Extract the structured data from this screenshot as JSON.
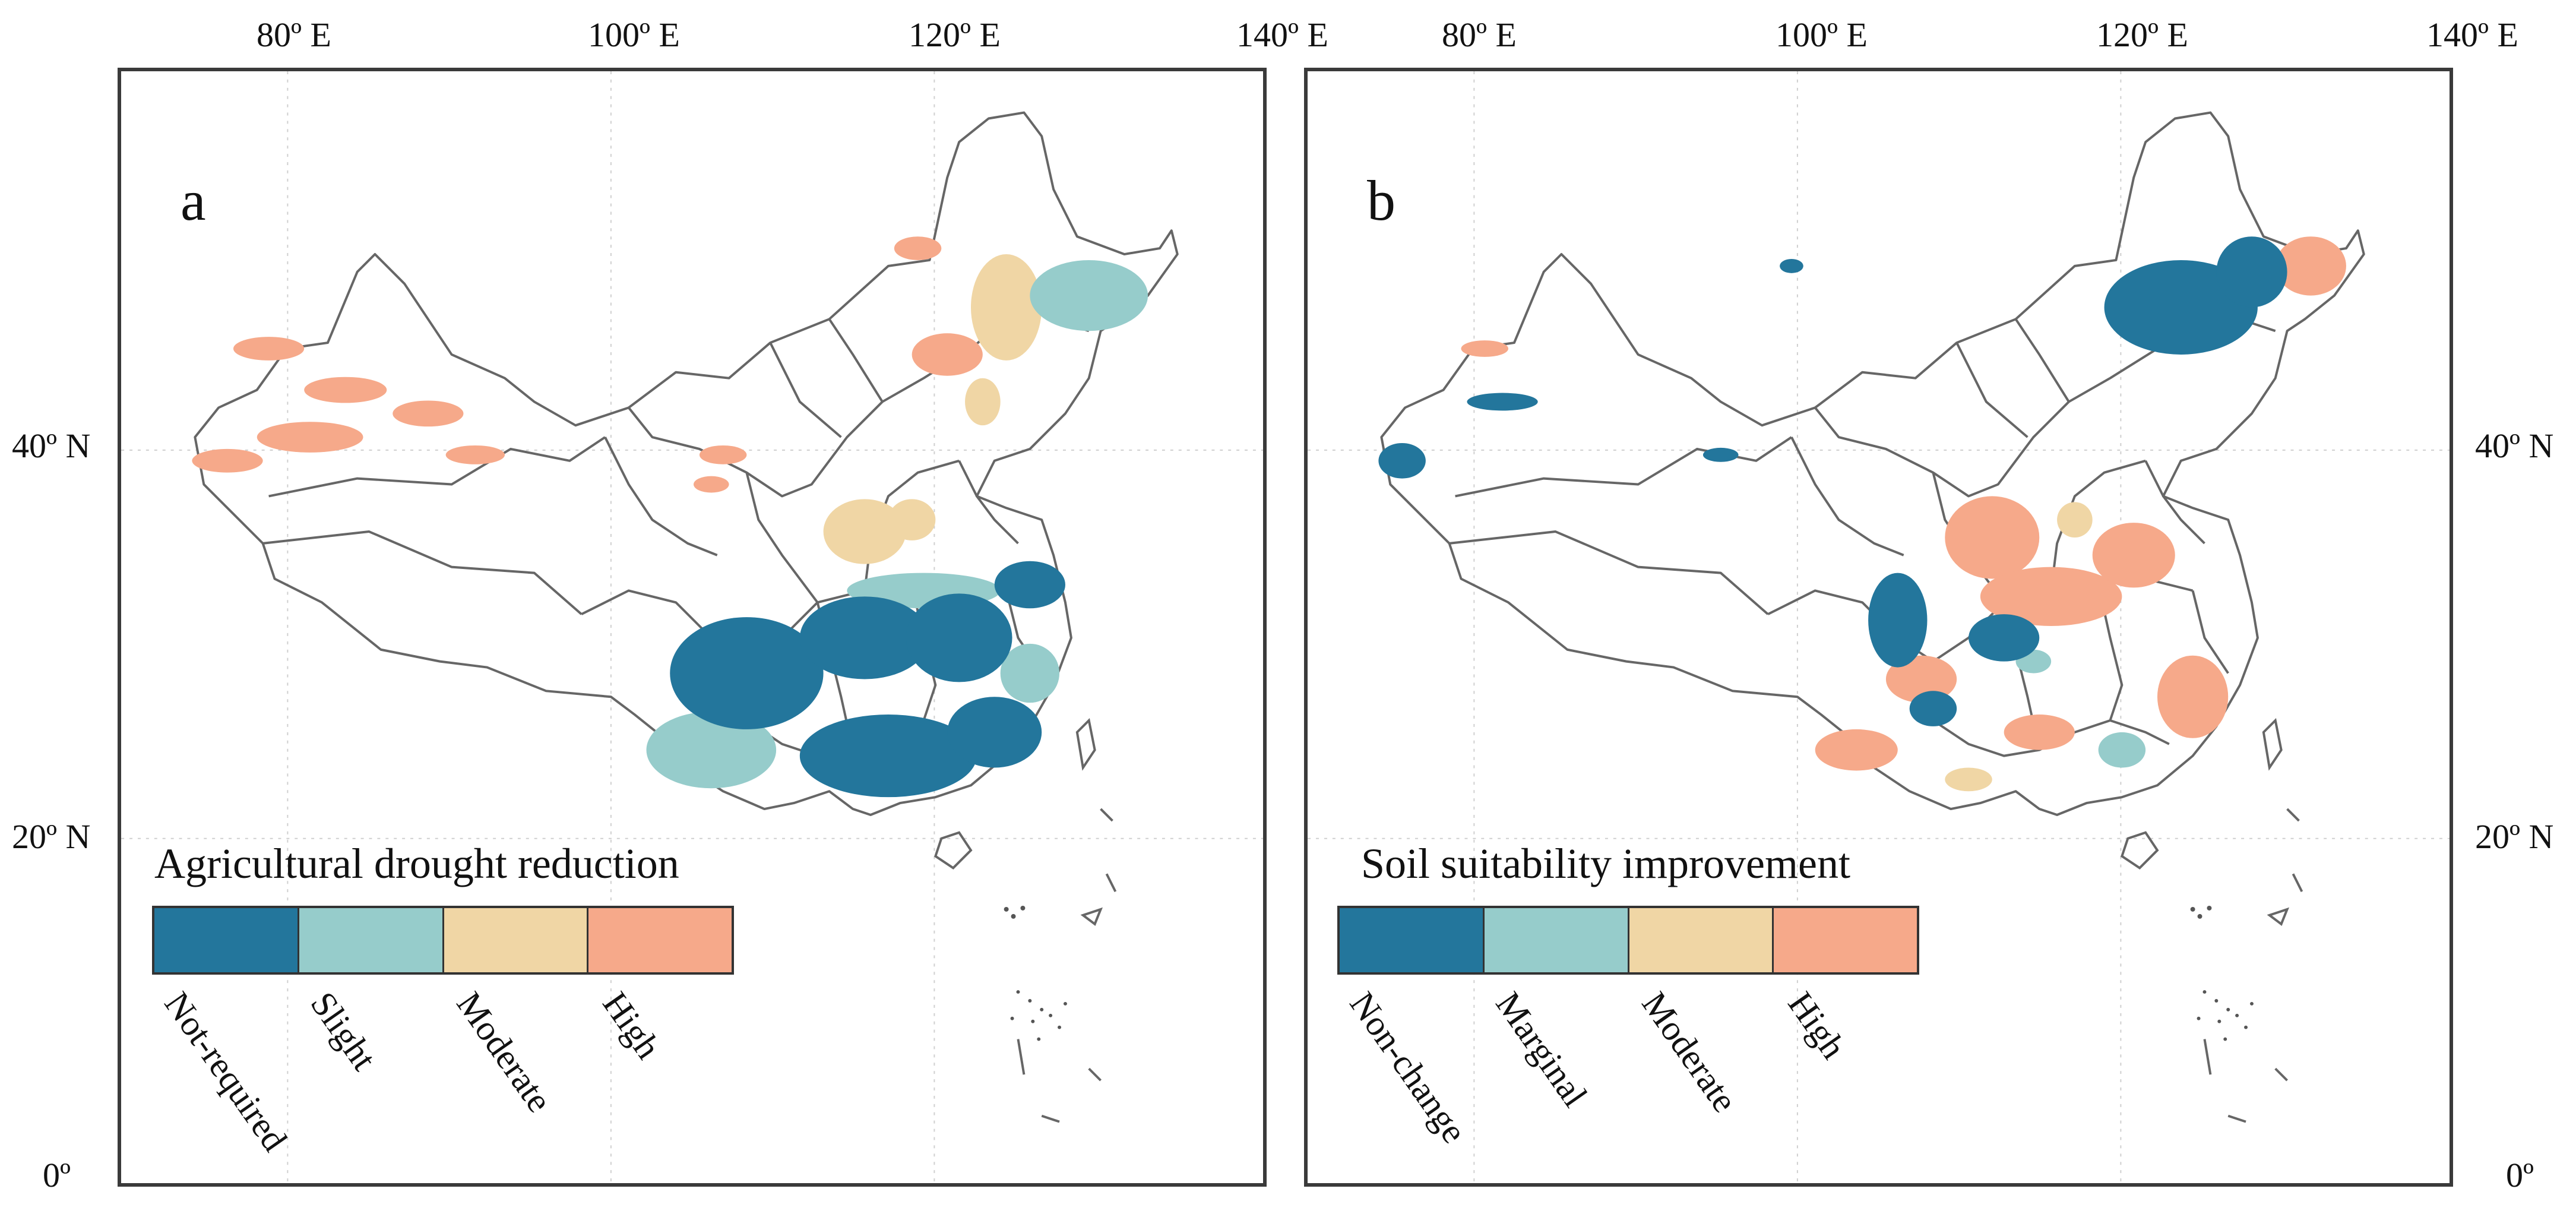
{
  "axes": {
    "top_left": [
      "80º E",
      "100º E",
      "120º E",
      "140º E"
    ],
    "top_right": [
      "80º E",
      "100º E",
      "120º E",
      "140º E"
    ],
    "left": [
      "40º N",
      "20º N",
      "0º"
    ],
    "right": [
      "40º N",
      "20º N",
      "0º"
    ]
  },
  "panel_a": {
    "letter": "a",
    "legend_title": "Agricultural drought reduction",
    "classes": [
      "Not-required",
      "Slight",
      "Moderate",
      "High"
    ],
    "colors": [
      "#23769c",
      "#96cccb",
      "#f0d6a5",
      "#f6a98a"
    ]
  },
  "panel_b": {
    "letter": "b",
    "legend_title": "Soil suitability improvement",
    "classes": [
      "Non-change",
      "Marginal",
      "Moderate",
      "High"
    ],
    "colors": [
      "#23769c",
      "#96cccb",
      "#f0d6a5",
      "#f6a98a"
    ]
  },
  "colors": {
    "frame": "#3a3a3a",
    "boundary": "#666666",
    "grid": "#cfcfcf"
  }
}
